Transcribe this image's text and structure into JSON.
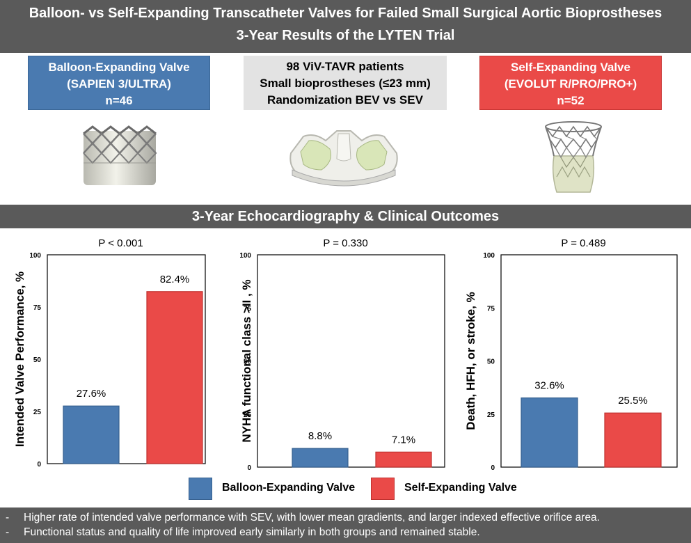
{
  "header": {
    "title": "Balloon- vs Self-Expanding Transcatheter Valves for Failed Small Surgical Aortic Bioprostheses",
    "subtitle": "3-Year Results of the LYTEN Trial"
  },
  "groups": {
    "bev": {
      "lines": [
        "Balloon-Expanding Valve",
        "(SAPIEN 3/ULTRA)",
        "n=46"
      ],
      "color": "#4a7ab0"
    },
    "center": {
      "lines": [
        "98 ViV-TAVR patients",
        "Small bioprostheses (≤23 mm)",
        "Randomization BEV vs SEV"
      ]
    },
    "sev": {
      "lines": [
        "Self-Expanding Valve",
        "(EVOLUT R/PRO/PRO+)",
        "n=52"
      ],
      "color": "#ea4a48"
    }
  },
  "section_title": "3-Year Echocardiography & Clinical Outcomes",
  "chart_data": [
    {
      "type": "bar",
      "title": "P < 0.001",
      "ylabel": "Intended Valve Performance, %",
      "categories": [
        "Balloon-Expanding Valve",
        "Self-Expanding Valve"
      ],
      "values": [
        27.6,
        82.4
      ],
      "labels": [
        "27.6%",
        "82.4%"
      ],
      "ylim": [
        0,
        100
      ],
      "yticks": [
        0,
        25,
        50,
        75,
        100
      ]
    },
    {
      "type": "bar",
      "title": "P = 0.330",
      "ylabel": "NYHA functional class >II , %",
      "categories": [
        "Balloon-Expanding Valve",
        "Self-Expanding Valve"
      ],
      "values": [
        8.8,
        7.1
      ],
      "labels": [
        "8.8%",
        "7.1%"
      ],
      "ylim": [
        0,
        100
      ],
      "yticks": [
        0,
        25,
        50,
        75,
        100
      ]
    },
    {
      "type": "bar",
      "title": "P = 0.489",
      "ylabel": "Death, HFH, or stroke, %",
      "categories": [
        "Balloon-Expanding Valve",
        "Self-Expanding Valve"
      ],
      "values": [
        32.6,
        25.5
      ],
      "labels": [
        "32.6%",
        "25.5%"
      ],
      "ylim": [
        0,
        100
      ],
      "yticks": [
        0,
        25,
        50,
        75,
        100
      ]
    }
  ],
  "legend": [
    {
      "label": "Balloon-Expanding Valve",
      "color": "#4a7ab0"
    },
    {
      "label": "Self-Expanding Valve",
      "color": "#ea4a48"
    }
  ],
  "notes": {
    "bullet": "-",
    "items": [
      "Higher rate of intended valve performance with SEV, with lower mean gradients, and larger indexed effective orifice area.",
      "Functional status and quality of life improved early similarly in both groups and remained stable."
    ]
  }
}
